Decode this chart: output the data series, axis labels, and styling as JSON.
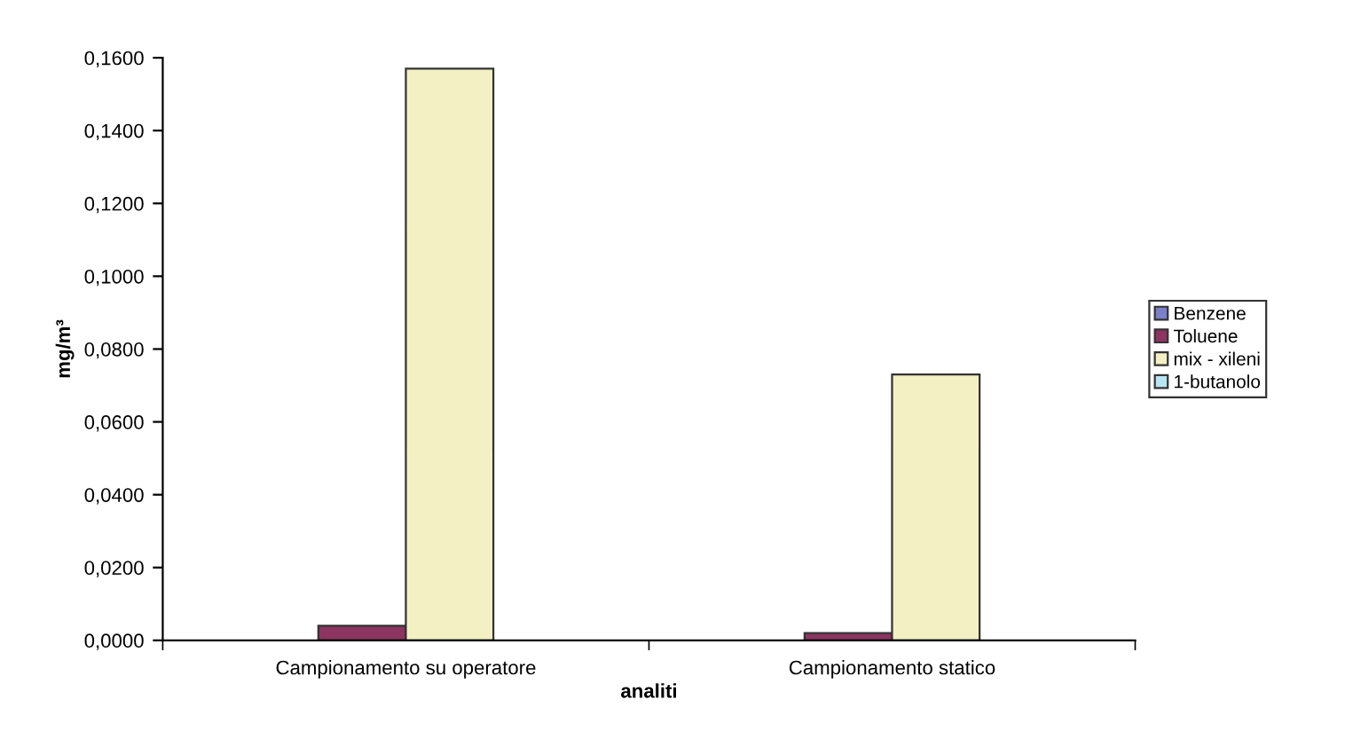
{
  "chart_data": {
    "type": "bar",
    "xlabel": "analiti",
    "ylabel": "mg/m³",
    "categories": [
      "Campionamento su operatore",
      "Campionamento statico"
    ],
    "series": [
      {
        "name": "Benzene",
        "color": "#7b80c8",
        "values": [
          null,
          null
        ]
      },
      {
        "name": "Toluene",
        "color": "#8b3560",
        "values": [
          0.004,
          0.002
        ]
      },
      {
        "name": "mix - xileni",
        "color": "#f3f0c4",
        "values": [
          0.157,
          0.073
        ]
      },
      {
        "name": "1-butanolo",
        "color": "#b8e6f0",
        "values": [
          null,
          null
        ]
      }
    ],
    "ylim": [
      0,
      0.16
    ],
    "yticks": [
      {
        "value": 0,
        "label": "0,0000"
      },
      {
        "value": 0.02,
        "label": "0,0200"
      },
      {
        "value": 0.04,
        "label": "0,0400"
      },
      {
        "value": 0.06,
        "label": "0,0600"
      },
      {
        "value": 0.08,
        "label": "0,0800"
      },
      {
        "value": 0.1,
        "label": "0,1000"
      },
      {
        "value": 0.12,
        "label": "0,1200"
      },
      {
        "value": 0.14,
        "label": "0,1400"
      },
      {
        "value": 0.16,
        "label": "0,1600"
      }
    ],
    "grid": false,
    "legend": "right"
  }
}
